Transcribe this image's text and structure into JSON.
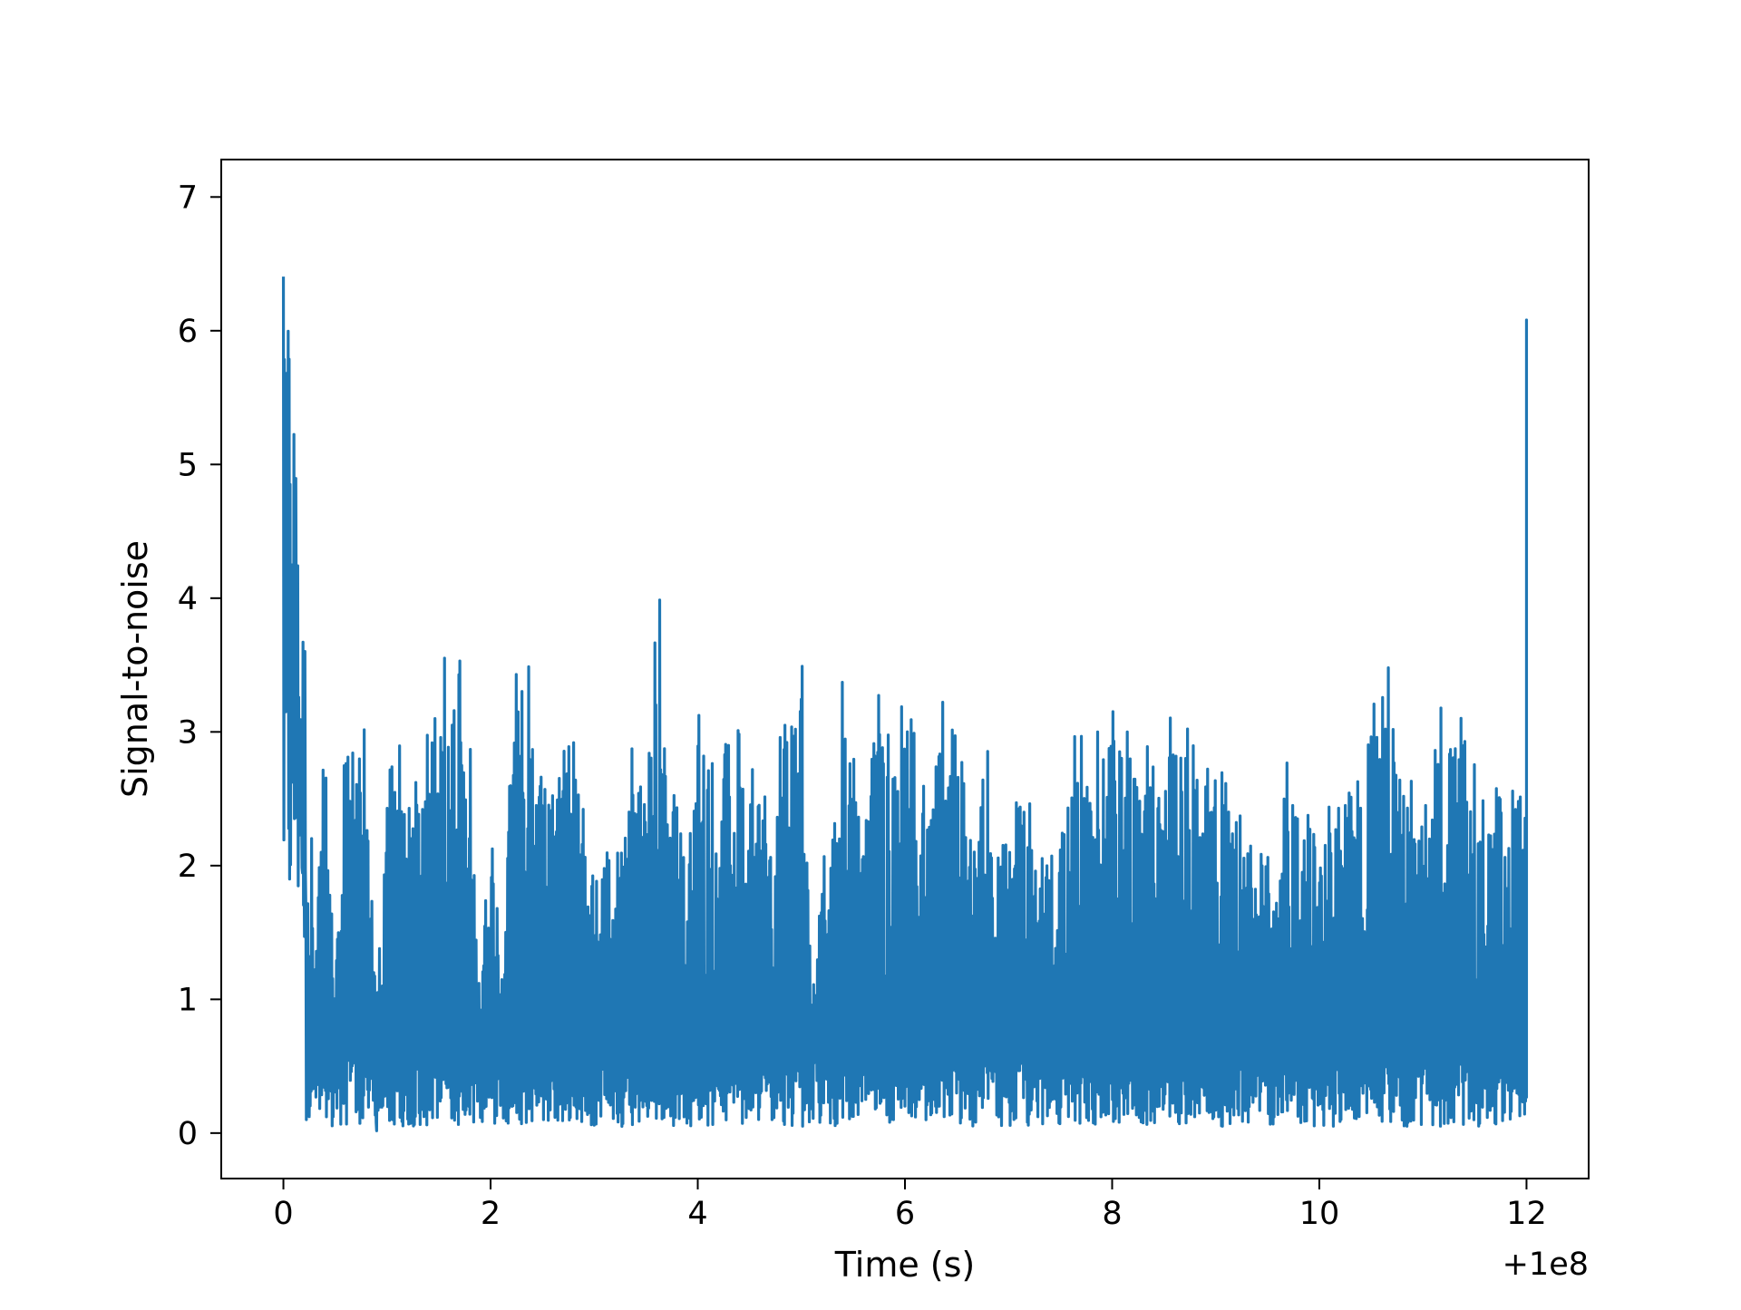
{
  "chart_data": {
    "type": "line",
    "title": "",
    "xlabel": "Time (s)",
    "ylabel": "Signal-to-noise",
    "x_offset_label": "+1e8",
    "xlim": [
      -0.6,
      12.6
    ],
    "ylim": [
      -0.34,
      7.28
    ],
    "xticks": [
      0,
      2,
      4,
      6,
      8,
      10,
      12
    ],
    "xtick_labels": [
      "0",
      "2",
      "4",
      "6",
      "8",
      "10",
      "12"
    ],
    "yticks": [
      0,
      1,
      2,
      3,
      4,
      5,
      6,
      7
    ],
    "ytick_labels": [
      "0",
      "1",
      "2",
      "3",
      "4",
      "5",
      "6",
      "7"
    ],
    "grid": false,
    "legend": "none",
    "line_color": "#1f77b4",
    "series": [
      {
        "x_range": [
          0.0,
          12.0
        ],
        "envelope_points": [
          [
            0.0,
            6.93
          ],
          [
            0.02,
            5.55
          ],
          [
            0.05,
            6.48
          ],
          [
            0.08,
            4.15
          ],
          [
            0.1,
            5.6
          ],
          [
            0.14,
            4.37
          ],
          [
            0.2,
            1.48
          ],
          [
            0.25,
            4.03
          ],
          [
            0.3,
            0.55
          ],
          [
            0.4,
            3.42
          ],
          [
            0.5,
            0.28
          ],
          [
            0.6,
            3.2
          ],
          [
            0.8,
            3.47
          ],
          [
            0.9,
            0.02
          ],
          [
            1.0,
            3.19
          ],
          [
            1.2,
            2.75
          ],
          [
            1.4,
            2.99
          ],
          [
            1.6,
            3.81
          ],
          [
            1.8,
            3.55
          ],
          [
            1.9,
            0.12
          ],
          [
            2.0,
            3.13
          ],
          [
            2.1,
            0.25
          ],
          [
            2.2,
            3.25
          ],
          [
            2.3,
            4.0
          ],
          [
            2.5,
            2.9
          ],
          [
            2.7,
            2.98
          ],
          [
            2.8,
            3.17
          ],
          [
            3.0,
            1.95
          ],
          [
            3.2,
            1.93
          ],
          [
            3.35,
            3.26
          ],
          [
            3.5,
            2.87
          ],
          [
            3.6,
            4.62
          ],
          [
            3.7,
            3.07
          ],
          [
            3.9,
            1.88
          ],
          [
            4.0,
            3.28
          ],
          [
            4.2,
            2.95
          ],
          [
            4.4,
            3.13
          ],
          [
            4.6,
            2.9
          ],
          [
            4.8,
            3.09
          ],
          [
            4.9,
            3.42
          ],
          [
            5.0,
            3.99
          ],
          [
            5.1,
            0.1
          ],
          [
            5.2,
            1.78
          ],
          [
            5.4,
            3.58
          ],
          [
            5.5,
            2.86
          ],
          [
            5.6,
            1.94
          ],
          [
            5.7,
            3.43
          ],
          [
            6.0,
            3.25
          ],
          [
            6.2,
            2.8
          ],
          [
            6.3,
            3.35
          ],
          [
            6.5,
            3.47
          ],
          [
            6.6,
            2.73
          ],
          [
            6.8,
            2.92
          ],
          [
            7.0,
            1.96
          ],
          [
            7.1,
            3.03
          ],
          [
            7.3,
            1.95
          ],
          [
            7.5,
            2.04
          ],
          [
            7.6,
            3.16
          ],
          [
            7.8,
            2.9
          ],
          [
            8.0,
            3.32
          ],
          [
            8.2,
            2.95
          ],
          [
            8.4,
            2.87
          ],
          [
            8.6,
            3.3
          ],
          [
            8.8,
            3.16
          ],
          [
            9.0,
            3.08
          ],
          [
            9.2,
            2.5
          ],
          [
            9.4,
            1.95
          ],
          [
            9.6,
            2.05
          ],
          [
            9.7,
            3.12
          ],
          [
            9.8,
            2.45
          ],
          [
            10.0,
            2.42
          ],
          [
            10.2,
            2.87
          ],
          [
            10.4,
            2.86
          ],
          [
            10.6,
            3.78
          ],
          [
            10.8,
            2.9
          ],
          [
            11.0,
            2.38
          ],
          [
            11.2,
            3.34
          ],
          [
            11.4,
            3.28
          ],
          [
            11.6,
            3.0
          ],
          [
            11.8,
            2.47
          ],
          [
            11.9,
            2.95
          ],
          [
            12.0,
            2.27
          ]
        ],
        "final_spike": [
          12.0,
          6.08
        ]
      }
    ]
  }
}
